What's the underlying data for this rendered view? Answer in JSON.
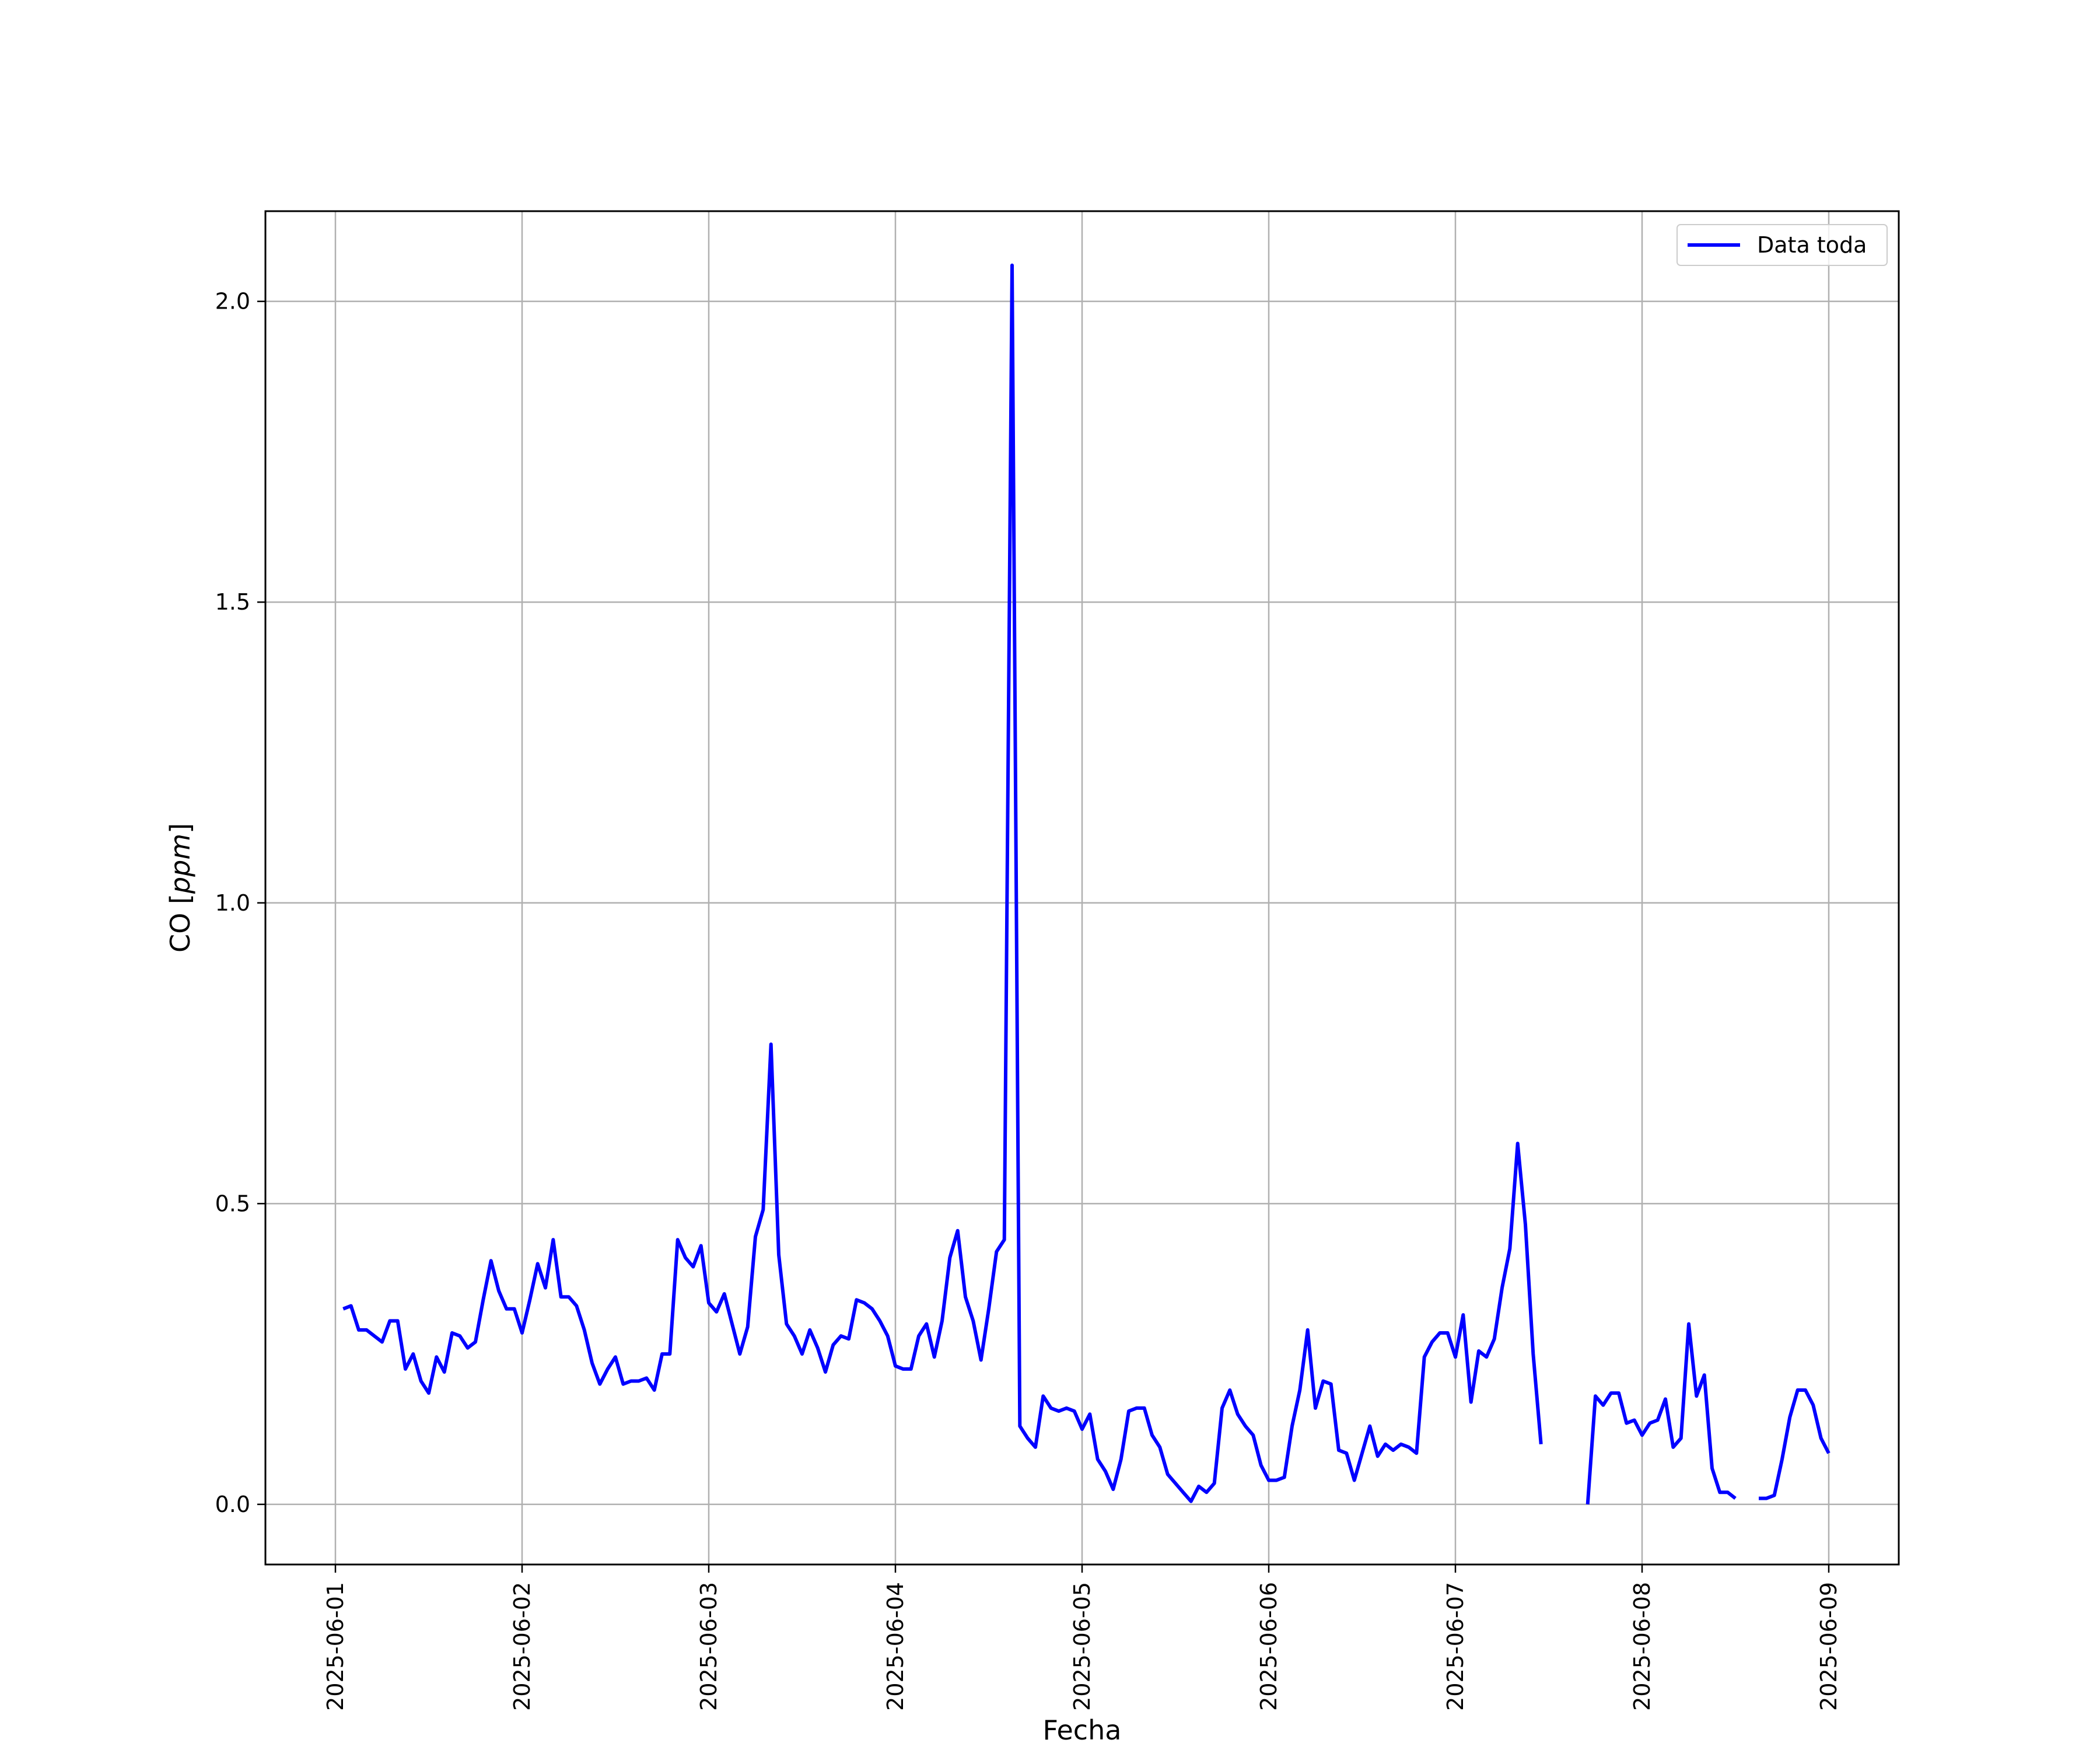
{
  "chart_data": {
    "type": "line",
    "title": "",
    "xlabel": "Fecha",
    "ylabel_main": "CO ",
    "ylabel_unit": "ppm",
    "xlim": [
      "2025-05-31T15:00",
      "2025-06-09T09:00"
    ],
    "ylim": [
      -0.1,
      2.15
    ],
    "x_ticks": [
      "2025-06-01",
      "2025-06-02",
      "2025-06-03",
      "2025-06-04",
      "2025-06-05",
      "2025-06-06",
      "2025-06-07",
      "2025-06-08",
      "2025-06-09"
    ],
    "y_ticks": [
      "0.0",
      "0.5",
      "1.0",
      "1.5",
      "2.0"
    ],
    "grid": true,
    "legend_position": "top-right",
    "series": [
      {
        "name": "Data toda",
        "color": "#0000ff",
        "start": "2025-06-01T01:00",
        "step_hours": 1,
        "values": [
          0.325,
          0.33,
          0.29,
          0.29,
          0.28,
          0.27,
          0.305,
          0.305,
          0.225,
          0.25,
          0.205,
          0.185,
          0.245,
          0.22,
          0.285,
          0.28,
          0.26,
          0.27,
          0.34,
          0.405,
          0.355,
          0.325,
          0.325,
          0.285,
          0.34,
          0.4,
          0.36,
          0.44,
          0.345,
          0.345,
          0.33,
          0.29,
          0.235,
          0.2,
          0.225,
          0.245,
          0.2,
          0.205,
          0.205,
          0.21,
          0.19,
          0.25,
          0.25,
          0.44,
          0.41,
          0.395,
          0.43,
          0.335,
          0.32,
          0.35,
          0.3,
          0.25,
          0.295,
          0.445,
          0.49,
          0.765,
          0.415,
          0.3,
          0.28,
          0.25,
          0.29,
          0.26,
          0.22,
          0.265,
          0.28,
          0.275,
          0.34,
          0.335,
          0.325,
          0.305,
          0.28,
          0.23,
          0.225,
          0.225,
          0.28,
          0.3,
          0.245,
          0.305,
          0.41,
          0.455,
          0.345,
          0.305,
          0.24,
          0.325,
          0.42,
          0.44,
          2.06,
          0.13,
          0.11,
          0.095,
          0.18,
          0.16,
          0.155,
          0.16,
          0.155,
          0.125,
          0.15,
          0.075,
          0.055,
          0.025,
          0.075,
          0.155,
          0.16,
          0.16,
          0.115,
          0.095,
          0.05,
          0.035,
          0.02,
          0.005,
          0.03,
          0.02,
          0.035,
          0.16,
          0.19,
          0.15,
          0.13,
          0.115,
          0.065,
          0.04,
          0.04,
          0.045,
          0.13,
          0.19,
          0.29,
          0.16,
          0.205,
          0.2,
          0.09,
          0.085,
          0.04,
          0.085,
          0.13,
          0.08,
          0.1,
          0.09,
          0.1,
          0.095,
          0.085,
          0.245,
          0.27,
          0.285,
          0.285,
          0.245,
          0.315,
          0.17,
          0.255,
          0.245,
          0.275,
          0.36,
          0.425,
          0.6,
          0.465,
          0.25,
          0.1,
          null,
          null,
          null,
          null,
          null,
          0.0,
          0.18,
          0.165,
          0.185,
          0.185,
          0.135,
          0.14,
          0.115,
          0.135,
          0.14,
          0.175,
          0.095,
          0.11,
          0.3,
          0.18,
          0.215,
          0.06,
          0.02,
          0.02,
          0.01,
          null,
          null,
          0.01,
          0.01,
          0.015,
          0.075,
          0.145,
          0.19,
          0.19,
          0.165,
          0.11,
          0.085
        ]
      }
    ]
  }
}
